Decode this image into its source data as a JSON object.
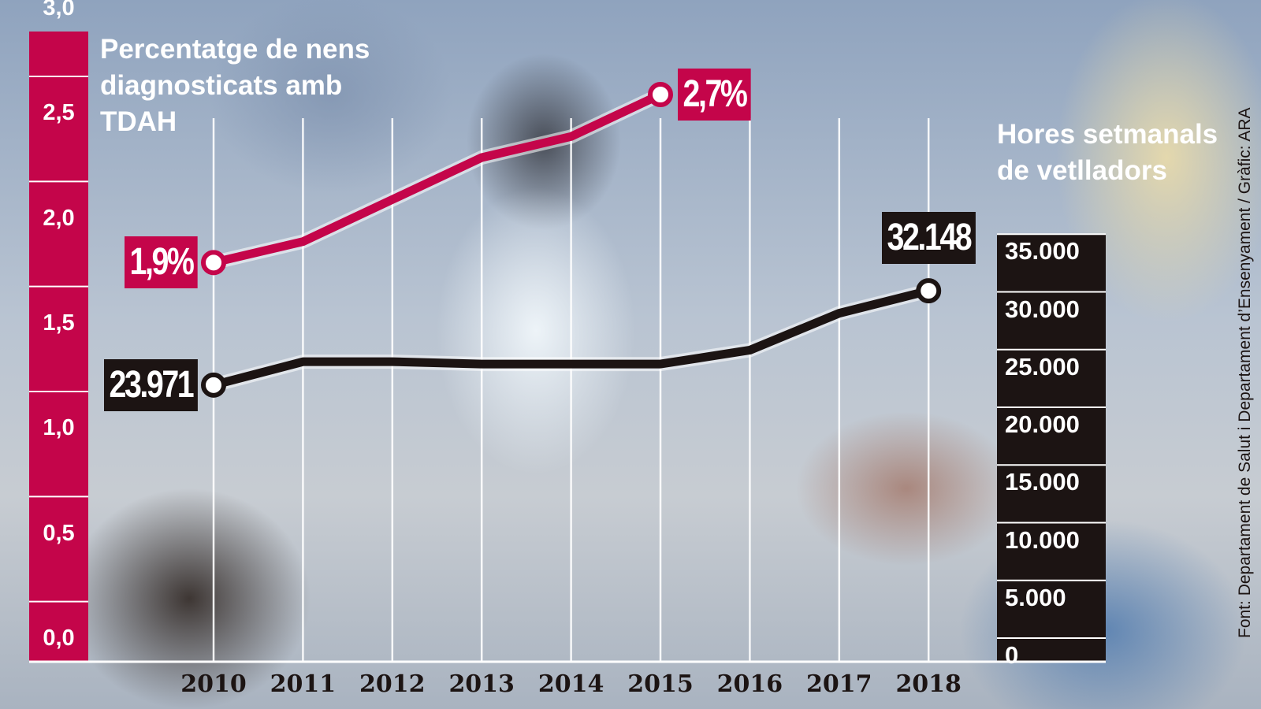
{
  "chart_data": {
    "type": "line",
    "x": [
      "2010",
      "2011",
      "2012",
      "2013",
      "2014",
      "2015",
      "2016",
      "2017",
      "2018"
    ],
    "series": [
      {
        "axis": "left",
        "color": "#c4054a",
        "values": [
          1.9,
          2.0,
          2.2,
          2.4,
          2.5,
          2.7,
          null,
          null,
          null
        ]
      },
      {
        "axis": "right",
        "color": "#1c1413",
        "values": [
          23971,
          26000,
          26000,
          25800,
          25800,
          25800,
          27000,
          30200,
          32148
        ]
      }
    ],
    "left_axis": {
      "title": "Percentatge de nens diagnosticats amb TDAH",
      "ylim": [
        0,
        3.0
      ],
      "ticks": [
        "0,0",
        "0,5",
        "1,0",
        "1,5",
        "2,0",
        "2,5",
        "3,0"
      ],
      "color": "#c4054a"
    },
    "right_axis": {
      "title": "Hores setmanals de vetlladors",
      "ylim": [
        0,
        37000
      ],
      "ticks": [
        "0",
        "5.000",
        "10.000",
        "15.000",
        "20.000",
        "25.000",
        "30.000",
        "35.000"
      ],
      "tick_values": [
        0,
        5000,
        10000,
        15000,
        20000,
        25000,
        30000,
        35000
      ],
      "color": "#1c1413"
    },
    "annotations": [
      {
        "text": "1,9%",
        "series": 0,
        "x": "2010"
      },
      {
        "text": "2,7%",
        "series": 0,
        "x": "2015"
      },
      {
        "text": "23.971",
        "series": 1,
        "x": "2010"
      },
      {
        "text": "32.148",
        "series": 1,
        "x": "2018"
      }
    ],
    "source": "Font: Departament de Salut i Departament d’Ensenyament / Gràfic: ARA",
    "grid": "vertical"
  }
}
